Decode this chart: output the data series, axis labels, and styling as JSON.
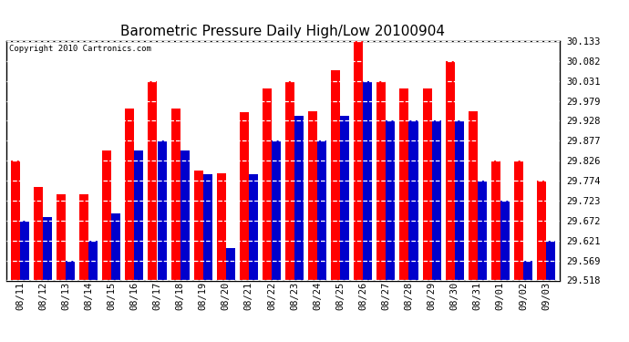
{
  "title": "Barometric Pressure Daily High/Low 20100904",
  "copyright": "Copyright 2010 Cartronics.com",
  "background_color": "#ffffff",
  "plot_background": "#ffffff",
  "grid_color": "#ffffff",
  "bar_color_high": "#ff0000",
  "bar_color_low": "#0000cc",
  "ylim_min": 29.518,
  "ylim_max": 30.133,
  "yticks": [
    29.518,
    29.569,
    29.621,
    29.672,
    29.723,
    29.774,
    29.826,
    29.877,
    29.928,
    29.979,
    30.031,
    30.082,
    30.133
  ],
  "dates": [
    "08/11",
    "08/12",
    "08/13",
    "08/14",
    "08/15",
    "08/16",
    "08/17",
    "08/18",
    "08/19",
    "08/20",
    "08/21",
    "08/22",
    "08/23",
    "08/24",
    "08/25",
    "08/26",
    "08/27",
    "08/28",
    "08/29",
    "08/30",
    "08/31",
    "09/01",
    "09/02",
    "09/03"
  ],
  "high": [
    29.826,
    29.757,
    29.74,
    29.74,
    29.852,
    29.96,
    30.031,
    29.96,
    29.8,
    29.793,
    29.95,
    30.01,
    30.031,
    29.952,
    30.058,
    30.133,
    30.031,
    30.01,
    30.01,
    30.082,
    29.952,
    29.826,
    29.826,
    29.774
  ],
  "low": [
    29.672,
    29.68,
    29.569,
    29.621,
    29.69,
    29.852,
    29.877,
    29.852,
    29.79,
    29.602,
    29.79,
    29.877,
    29.94,
    29.877,
    29.94,
    30.031,
    29.928,
    29.928,
    29.928,
    29.928,
    29.774,
    29.723,
    29.569,
    29.621
  ],
  "figsize": [
    6.9,
    3.75
  ],
  "dpi": 100,
  "bar_width": 0.4,
  "title_fontsize": 11,
  "tick_fontsize": 7.5,
  "copyright_fontsize": 6.5
}
